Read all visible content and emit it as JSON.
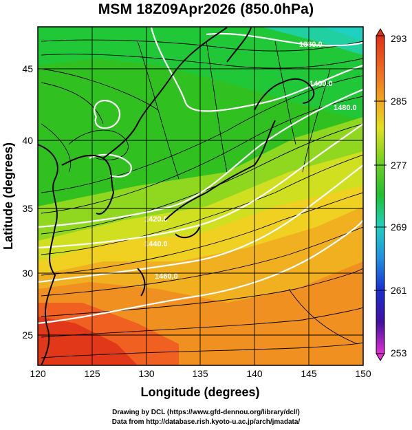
{
  "title": "MSM 18Z09Apr2026 (850.0hPa)",
  "credits": {
    "line1": "Drawing by DCL (https://www.gfd-dennou.org/library/dcl/)",
    "line2": "Data from http://database.rish.kyoto-u.ac.jp/arch/jmadata/"
  },
  "chart_data": {
    "type": "heatmap",
    "xlabel": "Longitude (degrees)",
    "ylabel": "Latitude  (degrees)",
    "xlim": [
      120,
      150
    ],
    "ylim": [
      22.4,
      47.6
    ],
    "x_ticks": [
      "120",
      "125",
      "130",
      "135",
      "140",
      "145",
      "150"
    ],
    "y_ticks": [
      "25",
      "30",
      "35",
      "40",
      "45"
    ],
    "colorbar": {
      "labels": [
        "293",
        "285",
        "277",
        "269",
        "261",
        "253"
      ],
      "range": [
        253,
        293
      ]
    },
    "contour_labels": [
      "1380.0",
      "1400.0",
      "1420.0",
      "1440.0",
      "1460.0",
      "1480.0"
    ],
    "grid": true,
    "overlay": "wind streamlines and geopotential height contours",
    "colors": {
      "hot": "#e03018",
      "warm": "#f0a020",
      "mild": "#e0e020",
      "cool": "#30c020",
      "cold": "#20d0c0",
      "contour": "#ffffff",
      "coast": "#000000"
    }
  }
}
